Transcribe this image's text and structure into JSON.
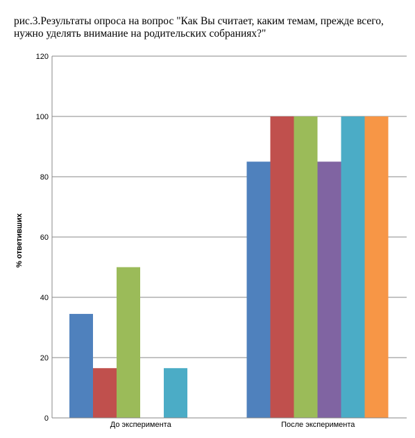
{
  "caption": "рис.3.Результаты опроса на вопрос \"Как Вы считает, каким темам, прежде всего, нужно уделять внимание на родительских собраниях?\"",
  "chart_data": {
    "type": "bar",
    "title": "",
    "xlabel": "",
    "ylabel": "% ответивших",
    "ylim": [
      0,
      120
    ],
    "yticks": [
      0,
      20,
      40,
      60,
      80,
      100,
      120
    ],
    "grid": true,
    "categories": [
      "До эксперимента",
      "После эксперимента"
    ],
    "series": [
      {
        "color": "#4F81BD",
        "values": [
          34.5,
          85
        ]
      },
      {
        "color": "#C0504D",
        "values": [
          16.5,
          100
        ]
      },
      {
        "color": "#9BBB59",
        "values": [
          50,
          100
        ]
      },
      {
        "color": "#8064A2",
        "values": [
          0,
          85
        ]
      },
      {
        "color": "#4BACC6",
        "values": [
          16.5,
          100
        ]
      },
      {
        "color": "#F79646",
        "values": [
          0,
          100
        ]
      }
    ]
  }
}
